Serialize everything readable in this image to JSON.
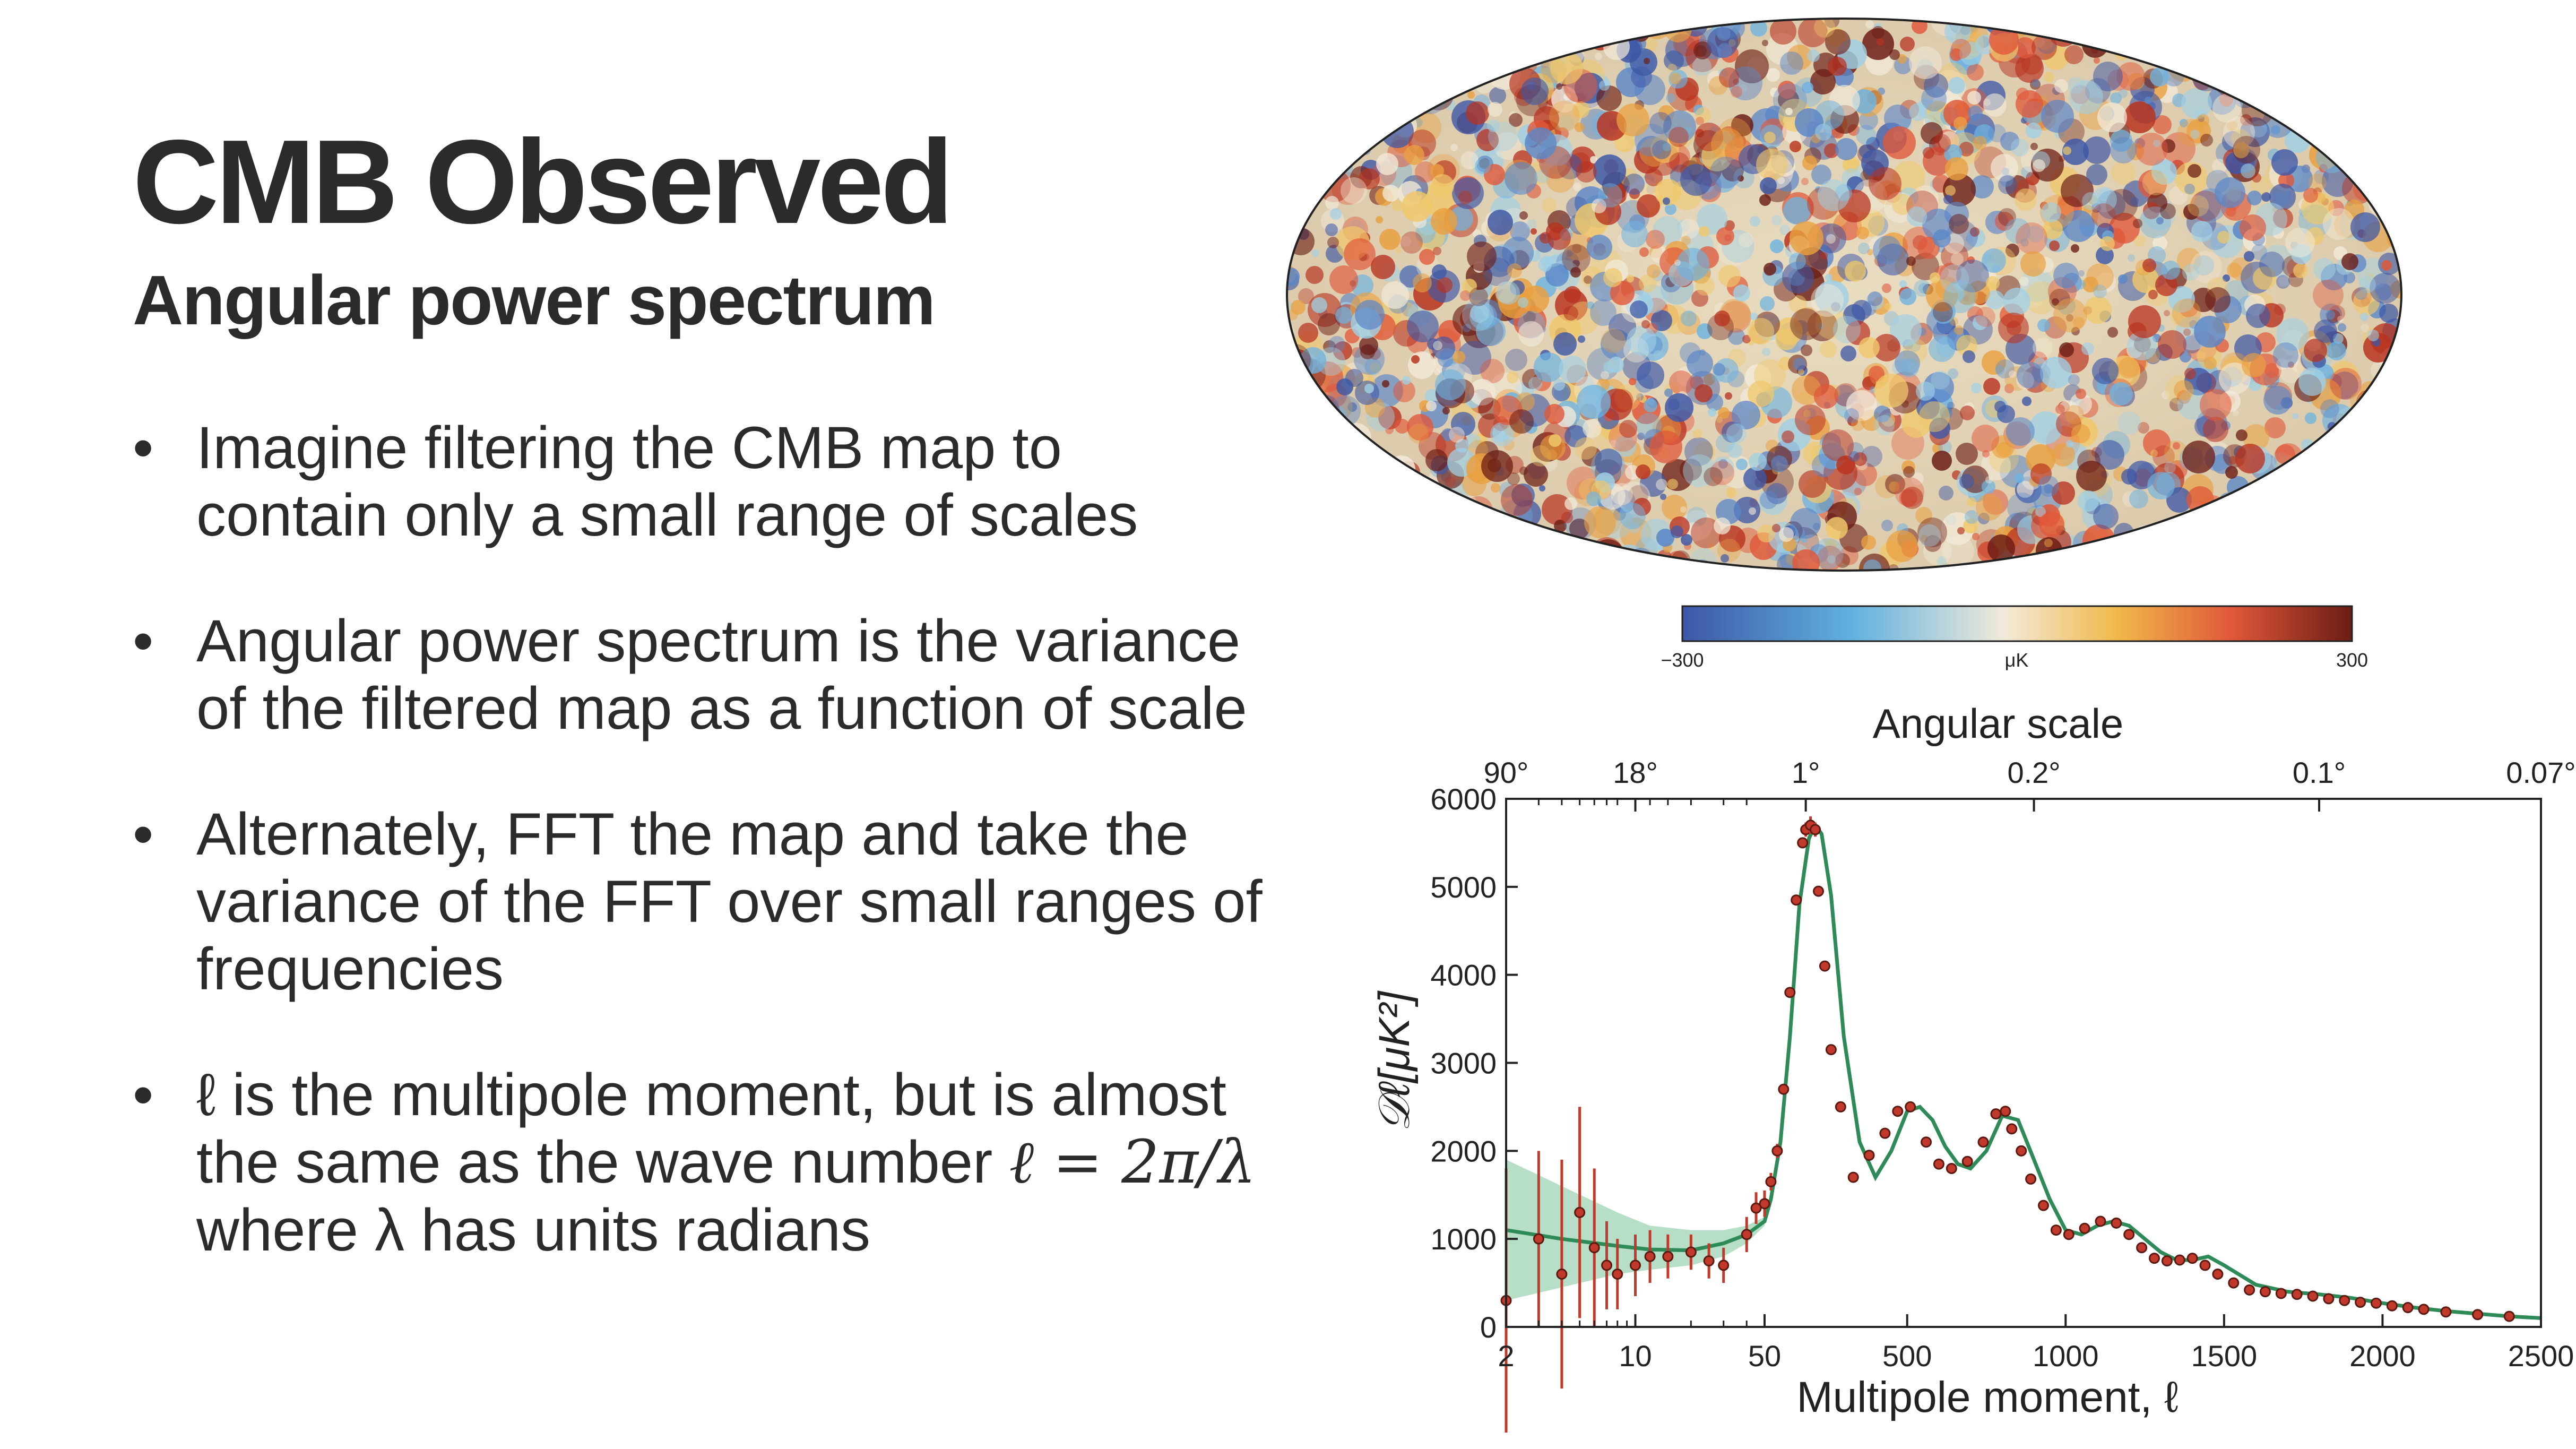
{
  "slide": {
    "title": "CMB Observed",
    "subtitle": "Angular power spectrum",
    "bullets": [
      {
        "lines": [
          "Imagine filtering the CMB map to",
          "contain only a small range of scales"
        ]
      },
      {
        "lines": [
          "Angular power spectrum is the variance",
          "of the filtered map as a function of scale"
        ]
      },
      {
        "lines": [
          "Alternately, FFT the map and take the",
          "variance of the FFT over small ranges of",
          "frequencies"
        ]
      },
      {
        "lines": [
          "ℓ is the multipole moment, but is almost",
          "the same as the wave number ",
          "where λ has units radians"
        ],
        "equation": "ℓ = 2π/λ"
      }
    ],
    "bullet_glyph": "•"
  },
  "colors": {
    "text": "#2b2b2b",
    "map_cold": "#3d57a6",
    "map_mid": "#f2ead9",
    "map_hot": "#6b1c14",
    "model_line": "#2e8b57",
    "model_band": "#9fd4b4",
    "data_points": "#c0392b"
  },
  "skymap": {
    "colorbar_min": "−300",
    "colorbar_max": "300",
    "colorbar_unit": "μK"
  },
  "chart_data": {
    "type": "scatter",
    "ylabel": "𝒟ℓ[μK²]",
    "xlabel": "Multipole moment, ℓ",
    "top_axis_title": "Angular scale",
    "top_axis_ticks": [
      "90°",
      "18°",
      "1°",
      "0.2°",
      "0.1°",
      "0.07°"
    ],
    "top_axis_tick_ell": [
      2,
      10,
      180,
      900,
      1800,
      2571
    ],
    "x_scale": "log for ℓ ≤ 50, linear for ℓ > 50",
    "xlim": [
      2,
      2500
    ],
    "ylim": [
      0,
      6000
    ],
    "x_ticks": [
      2,
      10,
      50,
      500,
      1000,
      1500,
      2000,
      2500
    ],
    "x_tick_labels": [
      "2",
      "10",
      "50",
      "500",
      "1000",
      "1500",
      "2000",
      "2500"
    ],
    "y_ticks": [
      0,
      1000,
      2000,
      3000,
      4000,
      5000,
      6000
    ],
    "y_tick_labels": [
      "0",
      "1000",
      "2000",
      "3000",
      "4000",
      "5000",
      "6000"
    ],
    "grid": false,
    "model": {
      "x": [
        2,
        4,
        8,
        12,
        20,
        30,
        40,
        50,
        70,
        100,
        130,
        160,
        190,
        210,
        230,
        260,
        300,
        350,
        400,
        450,
        500,
        540,
        580,
        620,
        660,
        700,
        750,
        800,
        850,
        900,
        950,
        1000,
        1050,
        1100,
        1150,
        1200,
        1250,
        1300,
        1350,
        1400,
        1450,
        1500,
        1600,
        1700,
        1800,
        1900,
        2000,
        2100,
        2200,
        2300,
        2400,
        2500
      ],
      "y": [
        1100,
        1000,
        920,
        880,
        870,
        950,
        1050,
        1200,
        1450,
        2100,
        3300,
        4800,
        5550,
        5700,
        5600,
        4900,
        3300,
        2100,
        1700,
        2000,
        2450,
        2500,
        2350,
        2050,
        1850,
        1800,
        2000,
        2400,
        2350,
        1900,
        1450,
        1100,
        1050,
        1150,
        1200,
        1150,
        1000,
        850,
        760,
        760,
        800,
        700,
        480,
        400,
        370,
        330,
        270,
        220,
        180,
        150,
        120,
        100
      ],
      "band_upper": [
        1900,
        1600,
        1300,
        1150,
        1100,
        1100,
        1150,
        1250
      ],
      "band_lower": [
        300,
        450,
        600,
        650,
        700,
        800,
        950,
        1150
      ]
    },
    "points": {
      "x": [
        2,
        3,
        4,
        5,
        6,
        7,
        8,
        10,
        12,
        15,
        20,
        25,
        30,
        40,
        45,
        50,
        70,
        90,
        110,
        130,
        150,
        170,
        180,
        195,
        210,
        220,
        240,
        260,
        290,
        330,
        380,
        430,
        470,
        510,
        560,
        600,
        640,
        690,
        740,
        780,
        810,
        830,
        860,
        890,
        930,
        970,
        1010,
        1060,
        1110,
        1160,
        1200,
        1240,
        1280,
        1320,
        1360,
        1400,
        1440,
        1480,
        1530,
        1580,
        1630,
        1680,
        1730,
        1780,
        1830,
        1880,
        1930,
        1980,
        2030,
        2080,
        2130,
        2200,
        2300,
        2400
      ],
      "y": [
        300,
        1000,
        600,
        1300,
        900,
        700,
        600,
        700,
        800,
        800,
        850,
        750,
        700,
        1050,
        1350,
        1400,
        1650,
        2000,
        2700,
        3800,
        4850,
        5500,
        5650,
        5700,
        5650,
        4950,
        4100,
        3150,
        2500,
        1700,
        1950,
        2200,
        2450,
        2500,
        2100,
        1850,
        1800,
        1880,
        2100,
        2420,
        2450,
        2250,
        2000,
        1680,
        1380,
        1100,
        1050,
        1120,
        1200,
        1180,
        1050,
        900,
        780,
        750,
        760,
        780,
        700,
        600,
        500,
        420,
        400,
        380,
        370,
        350,
        320,
        300,
        280,
        270,
        240,
        220,
        200,
        170,
        140,
        120
      ],
      "err": [
        1500,
        1000,
        1300,
        1200,
        900,
        500,
        400,
        350,
        300,
        250,
        200,
        200,
        200,
        200,
        180,
        150,
        100,
        80,
        60,
        60,
        60,
        60,
        80,
        100,
        80,
        60,
        50,
        50,
        40,
        40,
        40,
        40,
        40,
        40,
        40,
        40,
        40,
        40,
        40,
        40,
        40,
        40,
        40,
        40,
        30,
        30,
        30,
        30,
        30,
        30,
        30,
        30,
        30,
        30,
        30,
        30,
        30,
        30,
        30,
        30,
        30,
        30,
        30,
        30,
        30,
        30,
        30,
        30,
        30,
        30,
        30,
        30,
        30,
        30
      ]
    }
  }
}
